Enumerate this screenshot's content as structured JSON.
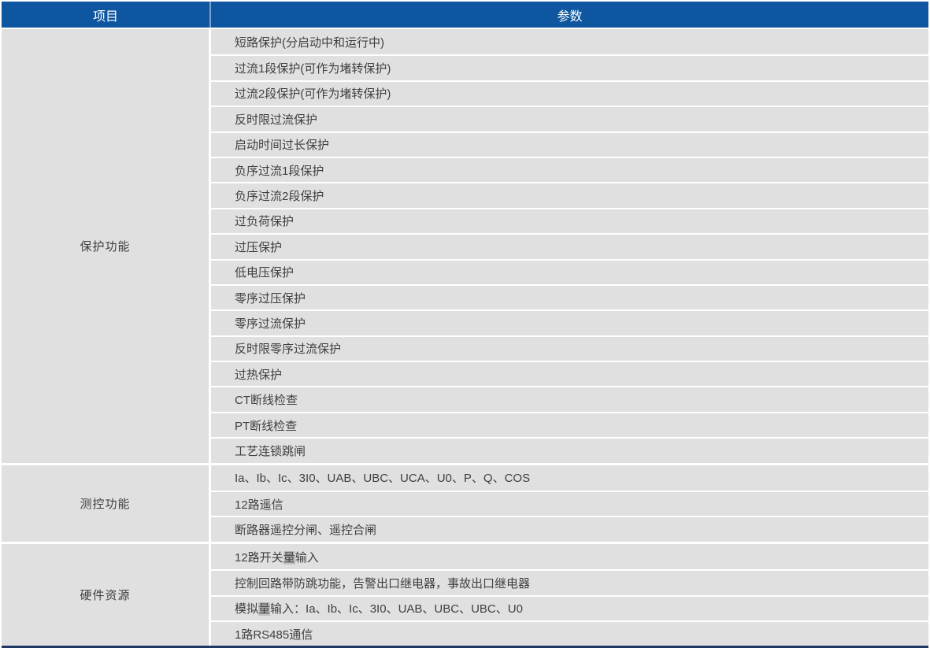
{
  "table": {
    "columns": [
      {
        "label": "项目"
      },
      {
        "label": "参数"
      }
    ],
    "groups": [
      {
        "label": "保护功能",
        "rows": [
          "短路保护(分启动中和运行中)",
          "过流1段保护(可作为堵转保护)",
          "过流2段保护(可作为堵转保护)",
          "反时限过流保护",
          "启动时间过长保护",
          "负序过流1段保护",
          "负序过流2段保护",
          "过负荷保护",
          "过压保护",
          "低电压保护",
          "零序过压保护",
          "零序过流保护",
          "反时限零序过流保护",
          "过热保护",
          "CT断线检查",
          "PT断线检查",
          "工艺连锁跳闸"
        ]
      },
      {
        "label": "测控功能",
        "rows": [
          "Ia、Ib、Ic、3I0、UAB、UBC、UCA、U0、P、Q、COS",
          "12路遥信",
          "断路器遥控分闸、遥控合闸"
        ]
      },
      {
        "label": "硬件资源",
        "rows": [
          "12路开关量输入",
          "控制回路带防跳功能，告警出口继电器，事故出口继电器",
          "模拟量输入：Ia、Ib、Ic、3I0、UAB、UBC、UBC、U0",
          "1路RS485通信"
        ]
      }
    ]
  },
  "highlight": {
    "char": "量",
    "bg": "#c3c3c3"
  },
  "colors": {
    "header_bg": "#0e57a0",
    "header_text": "#ffffff",
    "row_bg": "#e0e0e0",
    "separator": "#ffffff",
    "body_text": "#3f3f3f",
    "bottom_border": "#203864"
  }
}
